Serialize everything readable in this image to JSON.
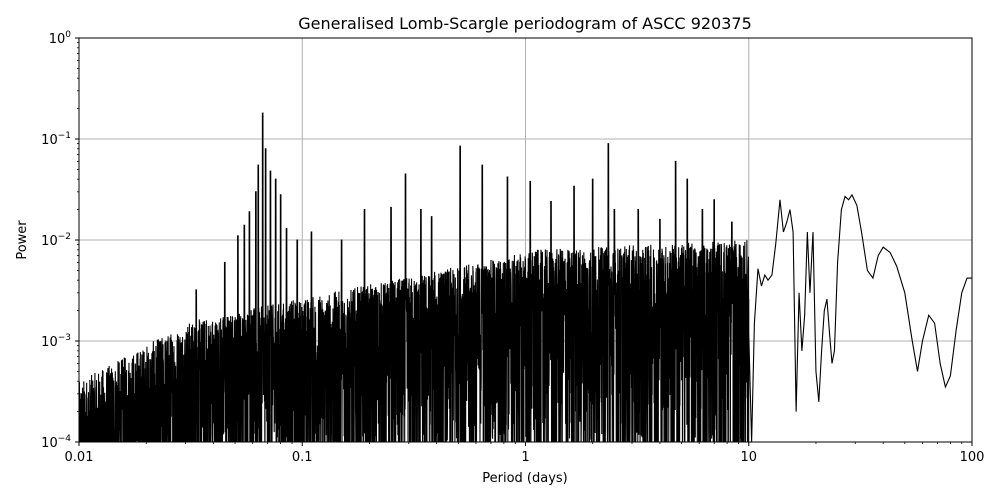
{
  "chart_data": {
    "type": "line",
    "title": "Generalised Lomb-Scargle periodogram of ASCC 920375",
    "xlabel": "Period (days)",
    "ylabel": "Power",
    "xscale": "log",
    "yscale": "log",
    "xlim": [
      0.01,
      100
    ],
    "ylim": [
      0.0001,
      1
    ],
    "grid": true,
    "line_color": "#000000",
    "grid_color": "#b0b0b0",
    "x_ticks": [
      {
        "value": 0.01,
        "label": "0.01"
      },
      {
        "value": 0.1,
        "label": "0.1"
      },
      {
        "value": 1,
        "label": "1"
      },
      {
        "value": 10,
        "label": "10"
      },
      {
        "value": 100,
        "label": "100"
      }
    ],
    "y_ticks": [
      {
        "value": 0.0001,
        "base": "10",
        "exp": "−4"
      },
      {
        "value": 0.001,
        "base": "10",
        "exp": "−3"
      },
      {
        "value": 0.01,
        "base": "10",
        "exp": "−2"
      },
      {
        "value": 0.1,
        "base": "10",
        "exp": "−1"
      },
      {
        "value": 1,
        "base": "10",
        "exp": "0"
      }
    ],
    "series": [
      {
        "smooth_segment": [
          [
            10.0,
            0.0012
          ],
          [
            10.3,
            0.0001
          ],
          [
            10.6,
            0.0015
          ],
          [
            11.0,
            0.0052
          ],
          [
            11.4,
            0.0035
          ],
          [
            11.8,
            0.0045
          ],
          [
            12.2,
            0.004
          ],
          [
            12.7,
            0.0045
          ],
          [
            13.2,
            0.009
          ],
          [
            13.8,
            0.025
          ],
          [
            14.3,
            0.012
          ],
          [
            14.8,
            0.015
          ],
          [
            15.3,
            0.02
          ],
          [
            15.8,
            0.012
          ],
          [
            16.3,
            0.0002
          ],
          [
            16.8,
            0.003
          ],
          [
            17.3,
            0.0008
          ],
          [
            17.8,
            0.0018
          ],
          [
            18.3,
            0.012
          ],
          [
            18.8,
            0.003
          ],
          [
            19.4,
            0.012
          ],
          [
            20.0,
            0.0005
          ],
          [
            20.6,
            0.00025
          ],
          [
            21.2,
            0.0008
          ],
          [
            21.8,
            0.002
          ],
          [
            22.4,
            0.0026
          ],
          [
            23.0,
            0.0012
          ],
          [
            23.6,
            0.0006
          ],
          [
            24.2,
            0.0008
          ],
          [
            25.0,
            0.006
          ],
          [
            26.0,
            0.02
          ],
          [
            27.0,
            0.027
          ],
          [
            28.0,
            0.025
          ],
          [
            29.0,
            0.028
          ],
          [
            30.5,
            0.022
          ],
          [
            32.0,
            0.012
          ],
          [
            34.0,
            0.005
          ],
          [
            36.0,
            0.0042
          ],
          [
            38.0,
            0.007
          ],
          [
            40.0,
            0.0085
          ],
          [
            43.0,
            0.0075
          ],
          [
            46.0,
            0.0055
          ],
          [
            50.0,
            0.003
          ],
          [
            54.0,
            0.001
          ],
          [
            57.0,
            0.0005
          ],
          [
            60.0,
            0.001
          ],
          [
            64.0,
            0.0018
          ],
          [
            68.0,
            0.0015
          ],
          [
            72.0,
            0.0006
          ],
          [
            76.0,
            0.00035
          ],
          [
            80.0,
            0.00045
          ],
          [
            85.0,
            0.0013
          ],
          [
            90.0,
            0.003
          ],
          [
            95.0,
            0.0042
          ],
          [
            100.0,
            0.0042
          ]
        ],
        "peaks": [
          [
            0.0335,
            0.0032
          ],
          [
            0.045,
            0.006
          ],
          [
            0.0515,
            0.011
          ],
          [
            0.055,
            0.014
          ],
          [
            0.058,
            0.019
          ],
          [
            0.062,
            0.03
          ],
          [
            0.0635,
            0.055
          ],
          [
            0.0665,
            0.18
          ],
          [
            0.0685,
            0.08
          ],
          [
            0.072,
            0.048
          ],
          [
            0.076,
            0.04
          ],
          [
            0.08,
            0.028
          ],
          [
            0.085,
            0.013
          ],
          [
            0.095,
            0.01
          ],
          [
            0.11,
            0.012
          ],
          [
            0.15,
            0.01
          ],
          [
            0.19,
            0.02
          ],
          [
            0.25,
            0.021
          ],
          [
            0.29,
            0.045
          ],
          [
            0.34,
            0.02
          ],
          [
            0.38,
            0.017
          ],
          [
            0.51,
            0.085
          ],
          [
            0.64,
            0.055
          ],
          [
            0.83,
            0.042
          ],
          [
            1.05,
            0.038
          ],
          [
            1.3,
            0.024
          ],
          [
            1.65,
            0.034
          ],
          [
            2.0,
            0.04
          ],
          [
            2.35,
            0.09
          ],
          [
            2.5,
            0.02
          ],
          [
            3.2,
            0.02
          ],
          [
            4.0,
            0.016
          ],
          [
            4.7,
            0.06
          ],
          [
            5.3,
            0.04
          ],
          [
            6.2,
            0.02
          ],
          [
            7.0,
            0.025
          ],
          [
            8.4,
            0.015
          ]
        ]
      }
    ]
  }
}
